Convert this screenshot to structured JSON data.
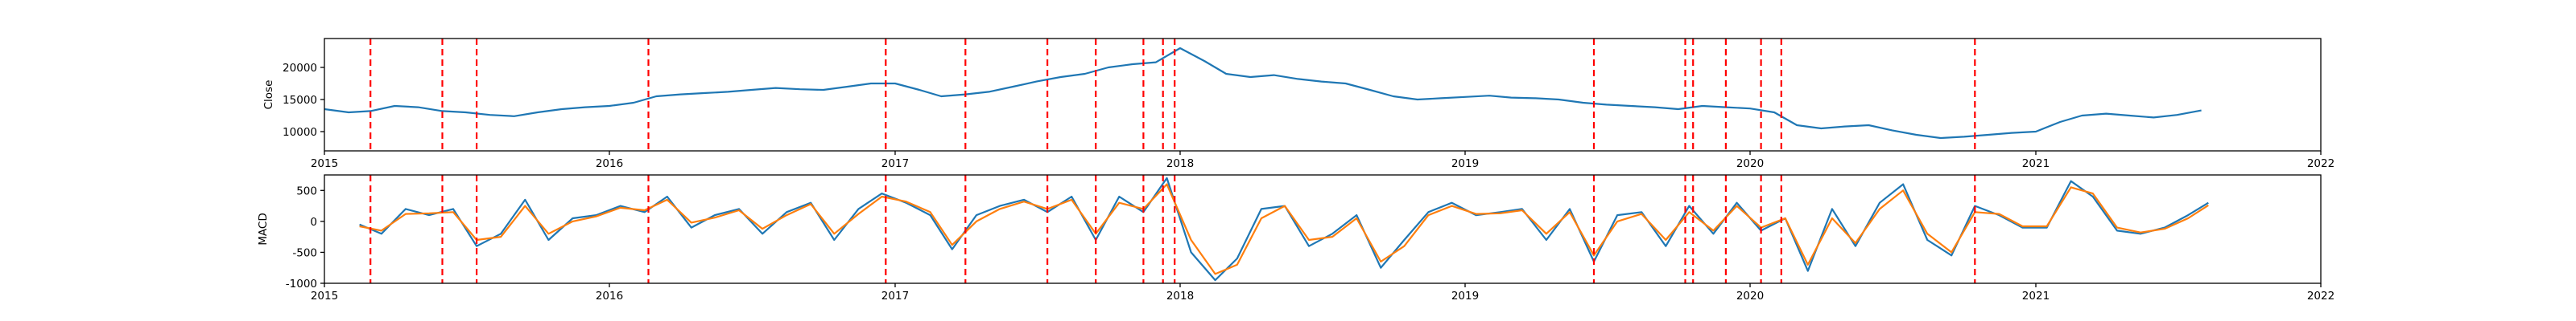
{
  "chart_data": [
    {
      "type": "line",
      "ylabel": "Close",
      "xlabel": "",
      "title": "",
      "xlim": [
        "2015-01-01",
        "2022-01-01"
      ],
      "ylim": [
        7000,
        24500
      ],
      "xticks": [
        "2015",
        "2016",
        "2017",
        "2018",
        "2019",
        "2020",
        "2021",
        "2022"
      ],
      "yticks": [
        "10000",
        "15000",
        "20000"
      ],
      "colors": {
        "line": "#1f77b4",
        "events": "#ff0000"
      },
      "series": [
        {
          "x": [
            "2015-01-01",
            "2015-02-01",
            "2015-03-01",
            "2015-04-01",
            "2015-05-01",
            "2015-06-01",
            "2015-07-01",
            "2015-08-01",
            "2015-09-01",
            "2015-10-01",
            "2015-11-01",
            "2015-12-01",
            "2016-01-01",
            "2016-02-01",
            "2016-03-01",
            "2016-04-01",
            "2016-05-01",
            "2016-06-01",
            "2016-07-01",
            "2016-08-01",
            "2016-09-01",
            "2016-10-01",
            "2016-11-01",
            "2016-12-01",
            "2017-01-01",
            "2017-02-01",
            "2017-03-01",
            "2017-04-01",
            "2017-05-01",
            "2017-06-01",
            "2017-07-01",
            "2017-08-01",
            "2017-09-01",
            "2017-10-01",
            "2017-11-01",
            "2017-12-01",
            "2018-01-01",
            "2018-02-01",
            "2018-03-01",
            "2018-04-01",
            "2018-05-01",
            "2018-06-01",
            "2018-07-01",
            "2018-08-01",
            "2018-09-01",
            "2018-10-01",
            "2018-11-01",
            "2018-12-01",
            "2019-01-01",
            "2019-02-01",
            "2019-03-01",
            "2019-04-01",
            "2019-05-01",
            "2019-06-01",
            "2019-07-01",
            "2019-08-01",
            "2019-09-01",
            "2019-10-01",
            "2019-11-01",
            "2019-12-01",
            "2020-01-01",
            "2020-02-01",
            "2020-03-01",
            "2020-04-01",
            "2020-05-01",
            "2020-06-01",
            "2020-07-01",
            "2020-08-01",
            "2020-09-01",
            "2020-10-01",
            "2020-11-01",
            "2020-12-01",
            "2021-01-01",
            "2021-02-01",
            "2021-03-01",
            "2021-04-01",
            "2021-05-01",
            "2021-06-01",
            "2021-07-01",
            "2021-08-01"
          ],
          "y": [
            13500,
            13000,
            13200,
            14000,
            13800,
            13200,
            13000,
            12600,
            12400,
            13000,
            13500,
            13800,
            14000,
            14500,
            15500,
            15800,
            16000,
            16200,
            16500,
            16800,
            16600,
            16500,
            17000,
            17500,
            17500,
            16500,
            15500,
            15800,
            16200,
            17000,
            17800,
            18500,
            19000,
            20000,
            20500,
            20800,
            23000,
            21000,
            19000,
            18500,
            18800,
            18200,
            17800,
            17500,
            16500,
            15500,
            15000,
            15200,
            15400,
            15600,
            15300,
            15200,
            15000,
            14500,
            14200,
            14000,
            13800,
            13500,
            14000,
            13800,
            13600,
            13000,
            11000,
            10500,
            10800,
            11000,
            10200,
            9500,
            9000,
            9200,
            9500,
            9800,
            10000,
            11500,
            12500,
            12800,
            12500,
            12200,
            12600,
            13300
          ]
        }
      ],
      "events": [
        "2015-03-01",
        "2015-06-01",
        "2015-07-15",
        "2016-02-20",
        "2016-12-20",
        "2017-04-01",
        "2017-07-15",
        "2017-09-15",
        "2017-11-15",
        "2017-12-10",
        "2017-12-25",
        "2019-06-15",
        "2019-10-10",
        "2019-10-20",
        "2019-12-01",
        "2020-01-15",
        "2020-02-10",
        "2020-10-15"
      ]
    },
    {
      "type": "line",
      "ylabel": "MACD",
      "xlabel": "",
      "title": "",
      "xlim": [
        "2015-01-01",
        "2022-01-01"
      ],
      "ylim": [
        -1000,
        750
      ],
      "xticks": [
        "2015",
        "2016",
        "2017",
        "2018",
        "2019",
        "2020",
        "2021",
        "2022"
      ],
      "yticks": [
        "-1000",
        "-500",
        "0",
        "500"
      ],
      "colors": {
        "macd": "#1f77b4",
        "signal": "#ff7f0e",
        "events": "#ff0000"
      },
      "series": [
        {
          "x": [
            "2015-02-15",
            "2015-03-15",
            "2015-04-15",
            "2015-05-15",
            "2015-06-15",
            "2015-07-15",
            "2015-08-15",
            "2015-09-15",
            "2015-10-15",
            "2015-11-15",
            "2015-12-15",
            "2016-01-15",
            "2016-02-15",
            "2016-03-15",
            "2016-04-15",
            "2016-05-15",
            "2016-06-15",
            "2016-07-15",
            "2016-08-15",
            "2016-09-15",
            "2016-10-15",
            "2016-11-15",
            "2016-12-15",
            "2017-01-15",
            "2017-02-15",
            "2017-03-15",
            "2017-04-15",
            "2017-05-15",
            "2017-06-15",
            "2017-07-15",
            "2017-08-15",
            "2017-09-15",
            "2017-10-15",
            "2017-11-15",
            "2017-12-15",
            "2018-01-15",
            "2018-02-15",
            "2018-03-15",
            "2018-04-15",
            "2018-05-15",
            "2018-06-15",
            "2018-07-15",
            "2018-08-15",
            "2018-09-15",
            "2018-10-15",
            "2018-11-15",
            "2018-12-15",
            "2019-01-15",
            "2019-02-15",
            "2019-03-15",
            "2019-04-15",
            "2019-05-15",
            "2019-06-15",
            "2019-07-15",
            "2019-08-15",
            "2019-09-15",
            "2019-10-15",
            "2019-11-15",
            "2019-12-15",
            "2020-01-15",
            "2020-02-15",
            "2020-03-15",
            "2020-04-15",
            "2020-05-15",
            "2020-06-15",
            "2020-07-15",
            "2020-08-15",
            "2020-09-15",
            "2020-10-15",
            "2020-11-15",
            "2020-12-15",
            "2021-01-15",
            "2021-02-15",
            "2021-03-15",
            "2021-04-15",
            "2021-05-15",
            "2021-06-15",
            "2021-07-15",
            "2021-08-10"
          ],
          "y": [
            -50,
            -200,
            200,
            100,
            200,
            -400,
            -200,
            350,
            -300,
            50,
            100,
            250,
            150,
            400,
            -100,
            100,
            200,
            -200,
            150,
            300,
            -300,
            200,
            450,
            300,
            100,
            -450,
            100,
            250,
            350,
            150,
            400,
            -300,
            400,
            150,
            700,
            -500,
            -950,
            -600,
            200,
            250,
            -400,
            -200,
            100,
            -750,
            -300,
            150,
            300,
            100,
            150,
            200,
            -300,
            200,
            -650,
            100,
            150,
            -400,
            250,
            -200,
            300,
            -150,
            50,
            -800,
            200,
            -400,
            300,
            600,
            -300,
            -550,
            250,
            100,
            -100,
            -100,
            650,
            400,
            -150,
            -200,
            -100,
            100,
            300
          ]
        },
        {
          "x": [
            "2015-02-15",
            "2015-03-15",
            "2015-04-15",
            "2015-05-15",
            "2015-06-15",
            "2015-07-15",
            "2015-08-15",
            "2015-09-15",
            "2015-10-15",
            "2015-11-15",
            "2015-12-15",
            "2016-01-15",
            "2016-02-15",
            "2016-03-15",
            "2016-04-15",
            "2016-05-15",
            "2016-06-15",
            "2016-07-15",
            "2016-08-15",
            "2016-09-15",
            "2016-10-15",
            "2016-11-15",
            "2016-12-15",
            "2017-01-15",
            "2017-02-15",
            "2017-03-15",
            "2017-04-15",
            "2017-05-15",
            "2017-06-15",
            "2017-07-15",
            "2017-08-15",
            "2017-09-15",
            "2017-10-15",
            "2017-11-15",
            "2017-12-15",
            "2018-01-15",
            "2018-02-15",
            "2018-03-15",
            "2018-04-15",
            "2018-05-15",
            "2018-06-15",
            "2018-07-15",
            "2018-08-15",
            "2018-09-15",
            "2018-10-15",
            "2018-11-15",
            "2018-12-15",
            "2019-01-15",
            "2019-02-15",
            "2019-03-15",
            "2019-04-15",
            "2019-05-15",
            "2019-06-15",
            "2019-07-15",
            "2019-08-15",
            "2019-09-15",
            "2019-10-15",
            "2019-11-15",
            "2019-12-15",
            "2020-01-15",
            "2020-02-15",
            "2020-03-15",
            "2020-04-15",
            "2020-05-15",
            "2020-06-15",
            "2020-07-15",
            "2020-08-15",
            "2020-09-15",
            "2020-10-15",
            "2020-11-15",
            "2020-12-15",
            "2021-01-15",
            "2021-02-15",
            "2021-03-15",
            "2021-04-15",
            "2021-05-15",
            "2021-06-15",
            "2021-07-15",
            "2021-08-10"
          ],
          "y": [
            -80,
            -150,
            120,
            130,
            150,
            -300,
            -250,
            250,
            -200,
            0,
            80,
            220,
            180,
            350,
            -20,
            60,
            180,
            -120,
            100,
            280,
            -200,
            120,
            400,
            320,
            150,
            -380,
            0,
            200,
            320,
            200,
            350,
            -200,
            300,
            200,
            600,
            -300,
            -850,
            -700,
            50,
            250,
            -300,
            -250,
            50,
            -650,
            -400,
            100,
            250,
            120,
            130,
            180,
            -200,
            150,
            -550,
            0,
            120,
            -300,
            150,
            -150,
            250,
            -100,
            50,
            -700,
            50,
            -350,
            200,
            500,
            -200,
            -500,
            150,
            120,
            -80,
            -80,
            550,
            450,
            -100,
            -180,
            -120,
            50,
            260
          ]
        }
      ],
      "events": [
        "2015-03-01",
        "2015-06-01",
        "2015-07-15",
        "2016-02-20",
        "2016-12-20",
        "2017-04-01",
        "2017-07-15",
        "2017-09-15",
        "2017-11-15",
        "2017-12-10",
        "2017-12-25",
        "2019-06-15",
        "2019-10-10",
        "2019-10-20",
        "2019-12-01",
        "2020-01-15",
        "2020-02-10",
        "2020-10-15"
      ]
    }
  ]
}
